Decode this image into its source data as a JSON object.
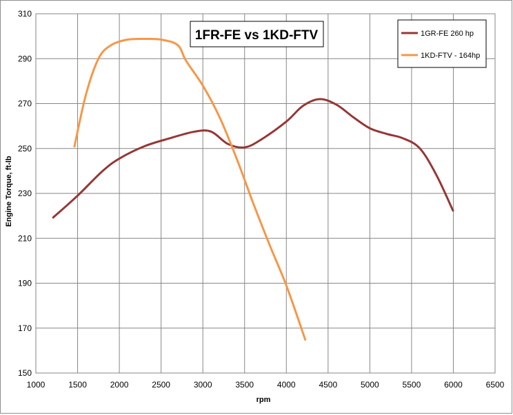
{
  "chart_data": {
    "type": "line",
    "title": "1FR-FE vs 1KD-FTV",
    "xlabel": "rpm",
    "ylabel": "Engine Torque, ft-lb",
    "xlim": [
      1000,
      6500
    ],
    "ylim": [
      150,
      310
    ],
    "x_ticks": [
      1000,
      1500,
      2000,
      2500,
      3000,
      3500,
      4000,
      4500,
      5000,
      5500,
      6000,
      6500
    ],
    "y_ticks": [
      150,
      170,
      190,
      210,
      230,
      250,
      270,
      290,
      310
    ],
    "grid": true,
    "legend_position": "top-right",
    "series": [
      {
        "name": "1GR-FE 260 hp",
        "color": "#953735",
        "x": [
          1200,
          1500,
          1800,
          2000,
          2300,
          2600,
          2900,
          3100,
          3300,
          3500,
          3700,
          4000,
          4200,
          4400,
          4600,
          4800,
          5000,
          5200,
          5400,
          5600,
          5800,
          6000
        ],
        "y": [
          219,
          229,
          240,
          245.5,
          251,
          254.5,
          257.5,
          257.5,
          252,
          250.5,
          254,
          262,
          269,
          272,
          269.5,
          264,
          259,
          256.5,
          254.5,
          250,
          238,
          222
        ]
      },
      {
        "name": "1KD-FTV - 164hp",
        "color": "#f79646",
        "x": [
          1460,
          1600,
          1750,
          1900,
          2100,
          2300,
          2500,
          2700,
          2800,
          3000,
          3200,
          3400,
          3600,
          3800,
          4000,
          4230
        ],
        "y": [
          250.5,
          274,
          290,
          296,
          298.5,
          298.8,
          298.5,
          296,
          289,
          278,
          264,
          246,
          226,
          207,
          189,
          164.5
        ]
      }
    ]
  }
}
